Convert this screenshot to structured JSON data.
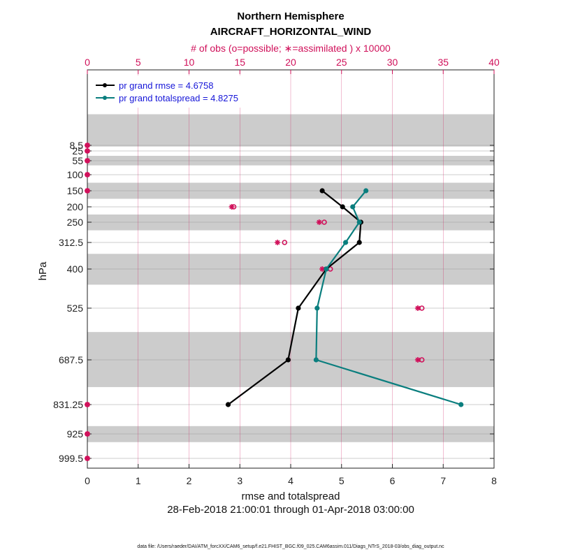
{
  "chart_data": {
    "type": "line",
    "title": "Northern Hemisphere",
    "subtitle": "AIRCRAFT_HORIZONTAL_WIND",
    "top_axis_label": "# of obs (o=possible; ∗=assimilated ) x 10000",
    "xlabel": "rmse and totalspread",
    "ylabel": "hPa",
    "date_range": "28-Feb-2018 21:00:01 through 01-Apr-2018 03:00:00",
    "footnote": "data file: /Users/raeder/DAI/ATM_forcXX/CAM6_setup/f.e21.FHIST_BGC.f09_025.CAM6assim.011/Diags_NTrS_2018-03/obs_diag_output.nc",
    "xlim": [
      0,
      8
    ],
    "xticks": [
      0,
      1,
      2,
      3,
      4,
      5,
      6,
      7,
      8
    ],
    "top_xlim": [
      0,
      40
    ],
    "top_xticks": [
      0,
      5,
      10,
      15,
      20,
      25,
      30,
      35,
      40
    ],
    "levels": [
      8.5,
      25,
      55,
      100,
      150,
      200,
      250,
      312.5,
      400,
      525,
      687.5,
      831.25,
      925,
      999.5
    ],
    "level_labels": [
      "8.5",
      "25",
      "55",
      "100",
      "150",
      "200",
      "250",
      "312.5",
      "400",
      "525",
      "687.5",
      "831.25",
      "925",
      "999.5"
    ],
    "layer_bands": [
      [
        5,
        12
      ],
      [
        40,
        70
      ],
      [
        125,
        175
      ],
      [
        225,
        275
      ],
      [
        350,
        450
      ],
      [
        600,
        775
      ],
      [
        900,
        950
      ]
    ],
    "legend_position": "top-left",
    "series": [
      {
        "name": "pr grand rmse = 4.6758",
        "color": "#000000",
        "levels": [
          150,
          200,
          250,
          312.5,
          400,
          525,
          687.5,
          831.25
        ],
        "values": [
          4.62,
          5.02,
          5.38,
          5.35,
          4.7,
          4.15,
          3.95,
          2.77
        ]
      },
      {
        "name": "pr grand totalspread = 4.8275",
        "color": "#0a7e7e",
        "levels": [
          150,
          200,
          250,
          312.5,
          400,
          525,
          687.5,
          831.25
        ],
        "values": [
          5.48,
          5.22,
          5.35,
          5.08,
          4.7,
          4.52,
          4.5,
          7.35
        ]
      }
    ],
    "obs_counts": {
      "color": "#d0105a",
      "units": "x 10000",
      "levels": [
        8.5,
        25,
        55,
        100,
        150,
        200,
        250,
        312.5,
        400,
        525,
        687.5,
        831.25,
        925,
        999.5
      ],
      "possible": [
        0,
        0,
        0,
        0,
        0,
        14.4,
        23.3,
        19.4,
        23.9,
        32.9,
        32.9,
        0,
        0,
        0
      ],
      "assimilated": [
        0,
        0,
        0,
        0,
        0,
        14.2,
        22.8,
        18.7,
        23.1,
        32.5,
        32.5,
        0,
        0,
        0
      ]
    }
  }
}
